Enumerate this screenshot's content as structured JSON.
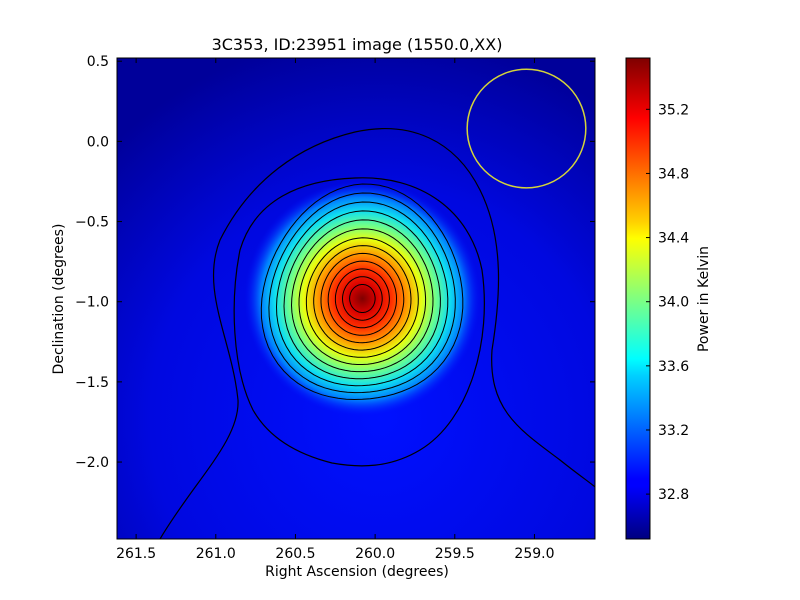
{
  "chart_data": {
    "type": "heatmap",
    "title": "3C353, ID:23951 image (1550.0,XX)",
    "xlabel": "Right Ascension (degrees)",
    "ylabel": "Declination (degrees)",
    "xlim": [
      261.62,
      258.62
    ],
    "ylim": [
      -2.48,
      0.52
    ],
    "x_ticks": [
      261.5,
      261.0,
      260.5,
      260.0,
      259.5,
      259.0
    ],
    "x_tick_labels": [
      "261.5",
      "261.0",
      "260.5",
      "260.0",
      "259.5",
      "259.0"
    ],
    "y_ticks": [
      0.5,
      0.0,
      -0.5,
      -1.0,
      -1.5,
      -2.0
    ],
    "y_tick_labels": [
      "0.5",
      "0.0",
      "−0.5",
      "−1.0",
      "−1.5",
      "−2.0"
    ],
    "colorbar": {
      "label": "Power in Kelvin",
      "range": [
        32.52,
        35.52
      ],
      "ticks": [
        32.8,
        33.2,
        33.6,
        34.0,
        34.4,
        34.8,
        35.2
      ],
      "tick_labels": [
        "32.8",
        "33.2",
        "33.6",
        "34.0",
        "34.4",
        "34.8",
        "35.2"
      ],
      "colormap": "jet"
    },
    "peak": {
      "ra": 260.08,
      "dec": -0.98,
      "value": 35.45
    },
    "background_level": 32.62,
    "contour_count": 16,
    "beam_circle": {
      "ra": 259.05,
      "dec": 0.08,
      "radius_deg": 0.37,
      "color": "#d4d43a"
    },
    "grid": false
  }
}
